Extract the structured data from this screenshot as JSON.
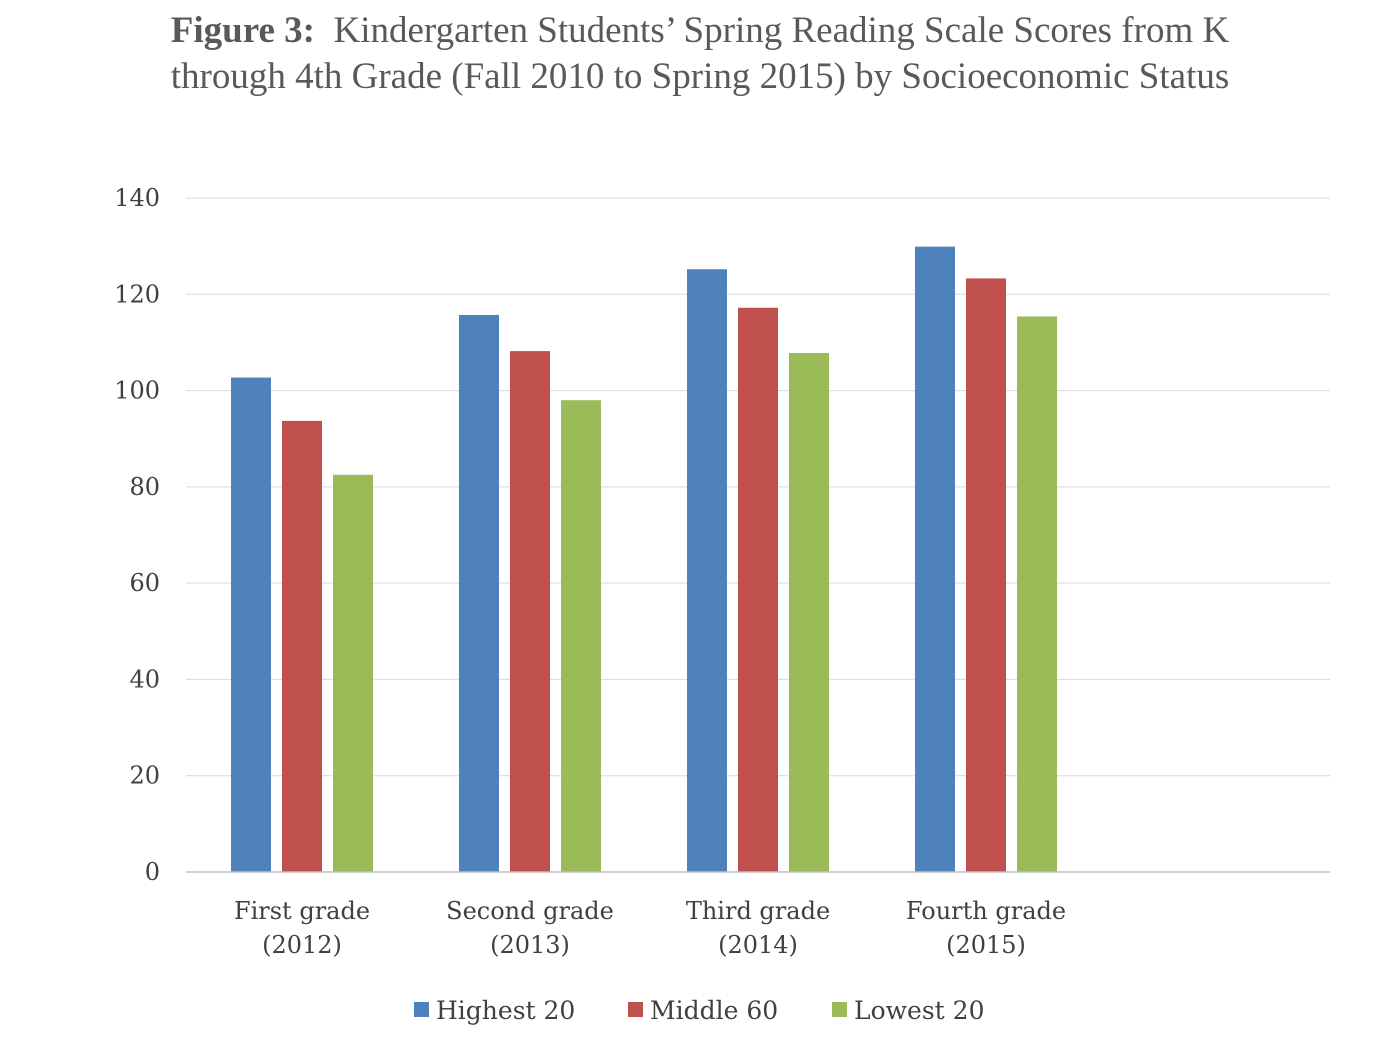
{
  "figure": {
    "title_bold": "Figure 3:",
    "title_line1_rest": "Kindergarten Students’ Spring Reading Scale Scores from K",
    "title_line2": "through 4th Grade (Fall 2010 to Spring 2015) by Socioeconomic Status"
  },
  "chart_data": {
    "type": "bar",
    "title": "Figure 3:  Kindergarten Students’ Spring Reading Scale Scores from K through 4th Grade (Fall 2010 to Spring 2015) by Socioeconomic Status",
    "xlabel": "",
    "ylabel": "",
    "ylim": [
      0,
      140
    ],
    "yticks": [
      "0",
      "20",
      "40",
      "60",
      "80",
      "100",
      "120",
      "140"
    ],
    "grid": true,
    "legend_position": "bottom",
    "categories": [
      [
        "First grade",
        "(2012)"
      ],
      [
        "Second grade",
        "(2013)"
      ],
      [
        "Third grade",
        "(2014)"
      ],
      [
        "Fourth grade",
        "(2015)"
      ]
    ],
    "series": [
      {
        "name": "Highest 20",
        "color": "#4f81bd",
        "values": [
          102.7,
          115.7,
          125.2,
          129.9
        ]
      },
      {
        "name": "Middle 60",
        "color": "#c0504d",
        "values": [
          93.7,
          108.2,
          117.2,
          123.3
        ]
      },
      {
        "name": "Lowest 20",
        "color": "#9bbb59",
        "values": [
          82.5,
          98.0,
          107.8,
          115.4
        ]
      }
    ]
  }
}
